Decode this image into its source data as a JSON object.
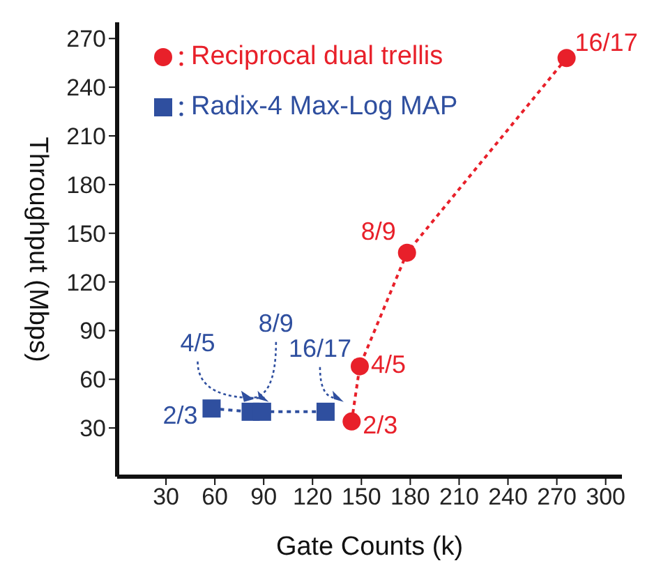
{
  "chart_data": {
    "type": "scatter",
    "xlabel": "Gate Counts (k)",
    "ylabel": "Throughput (Mbps)",
    "xlim": [
      0,
      310
    ],
    "xticks": [
      30,
      60,
      90,
      120,
      150,
      180,
      210,
      240,
      270,
      300
    ],
    "ylim": [
      0,
      280
    ],
    "yticks": [
      30,
      60,
      90,
      120,
      150,
      180,
      210,
      240,
      270
    ],
    "grid": false,
    "legend": "top left",
    "line_style": "dotted",
    "series": [
      {
        "name": "Reciprocal dual trellis",
        "color": "#e8202a",
        "marker": "circle",
        "x": [
          144,
          149,
          178,
          276
        ],
        "values": [
          34,
          68,
          138,
          258
        ]
      },
      {
        "name": "Radix-4 Max-Log MAP",
        "color": "#2f4f9f",
        "marker": "square",
        "x": [
          58,
          82,
          89,
          128
        ],
        "values": [
          42,
          40,
          40,
          40
        ]
      }
    ],
    "annotations": [
      {
        "text": "2/3",
        "x": 144,
        "y": 34
      },
      {
        "text": "4/5",
        "x": 149,
        "y": 68
      },
      {
        "text": "8/9",
        "x": 178,
        "y": 138
      },
      {
        "text": "16/17",
        "x": 276,
        "y": 258
      },
      {
        "text": "2/3",
        "x": 58,
        "y": 42
      },
      {
        "text": "4/5",
        "x": 82,
        "y": 40
      },
      {
        "text": "8/9",
        "x": 89,
        "y": 40
      },
      {
        "text": "16/17",
        "x": 128,
        "y": 40
      }
    ]
  }
}
